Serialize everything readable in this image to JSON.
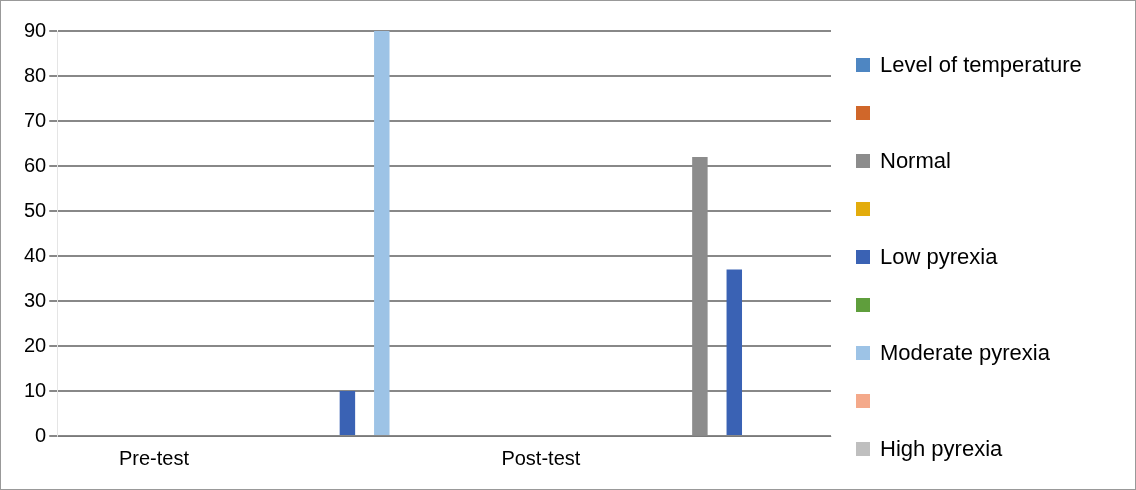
{
  "chart_data": {
    "type": "bar",
    "categories": [
      "Pre-test",
      null,
      "Post-test",
      null
    ],
    "series": [
      {
        "name": "Level of temperature",
        "color": "#4e86c2",
        "values": [
          null,
          0,
          null,
          0
        ]
      },
      {
        "color": "#d0672a",
        "values": [
          null,
          null,
          null,
          null
        ]
      },
      {
        "name": "Normal",
        "color": "#8c8c8c",
        "values": [
          null,
          0,
          null,
          62
        ]
      },
      {
        "color": "#e3ac0c",
        "values": [
          null,
          null,
          null,
          null
        ]
      },
      {
        "name": "Low pyrexia",
        "color": "#3a62b4",
        "values": [
          null,
          10,
          null,
          37
        ]
      },
      {
        "color": "#5f9e3c",
        "values": [
          null,
          null,
          null,
          null
        ]
      },
      {
        "name": "Moderate pyrexia",
        "color": "#9dc3e6",
        "values": [
          null,
          90,
          null,
          0
        ]
      },
      {
        "color": "#f4a98a",
        "values": [
          null,
          null,
          null,
          null
        ]
      },
      {
        "name": "High pyrexia",
        "color": "#bfbfbf",
        "values": [
          null,
          0,
          null,
          0
        ]
      }
    ],
    "ylim": [
      0,
      90
    ],
    "yticks": [
      0,
      10,
      20,
      30,
      40,
      50,
      60,
      70,
      80,
      90
    ],
    "grid": "y",
    "legend": "right"
  }
}
